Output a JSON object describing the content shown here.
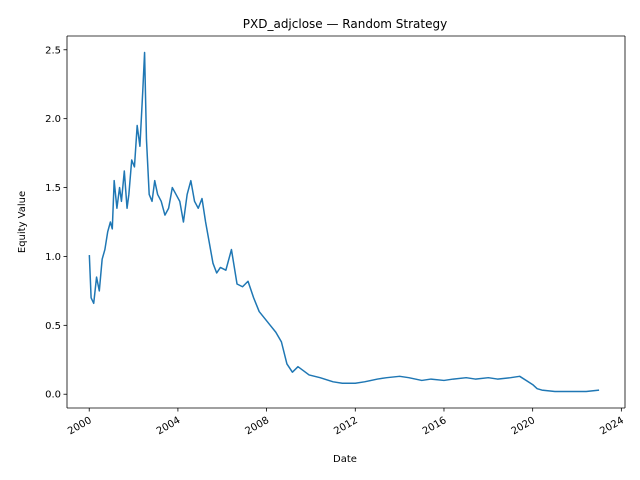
{
  "chart_data": {
    "type": "line",
    "title": "PXD_adjclose — Random Strategy",
    "xlabel": "Date",
    "ylabel": "Equity Value",
    "xlim": [
      "1998-12-31",
      "2024-03-01"
    ],
    "ylim": [
      -0.1,
      2.6
    ],
    "x_ticks": [
      "2000",
      "2004",
      "2008",
      "2012",
      "2016",
      "2020",
      "2024"
    ],
    "y_ticks": [
      "0.0",
      "0.5",
      "1.0",
      "1.5",
      "2.0",
      "2.5"
    ],
    "grid": false,
    "line_color": "#1f77b4",
    "series": [
      {
        "name": "",
        "x": [
          "2000-01-03",
          "2000-02-01",
          "2000-03-15",
          "2000-05-01",
          "2000-06-15",
          "2000-08-01",
          "2000-09-15",
          "2000-11-01",
          "2000-12-15",
          "2001-01-15",
          "2001-02-15",
          "2001-04-01",
          "2001-05-15",
          "2001-06-15",
          "2001-08-01",
          "2001-09-15",
          "2001-10-15",
          "2001-12-01",
          "2002-01-15",
          "2002-03-01",
          "2002-04-15",
          "2002-06-01",
          "2002-07-01",
          "2002-08-01",
          "2002-09-15",
          "2002-11-01",
          "2002-12-15",
          "2003-02-01",
          "2003-04-01",
          "2003-06-01",
          "2003-08-01",
          "2003-10-01",
          "2003-12-01",
          "2004-02-01",
          "2004-04-01",
          "2004-06-01",
          "2004-08-01",
          "2004-10-01",
          "2004-12-01",
          "2005-02-01",
          "2005-04-01",
          "2005-06-01",
          "2005-08-01",
          "2005-10-01",
          "2005-12-01",
          "2006-03-01",
          "2006-06-01",
          "2006-09-01",
          "2006-12-01",
          "2007-03-01",
          "2007-06-01",
          "2007-09-01",
          "2007-12-01",
          "2008-03-01",
          "2008-06-01",
          "2008-09-01",
          "2008-12-01",
          "2009-03-01",
          "2009-06-01",
          "2009-09-01",
          "2009-12-01",
          "2010-06-01",
          "2011-01-01",
          "2011-06-01",
          "2012-01-01",
          "2012-06-01",
          "2013-01-01",
          "2013-06-01",
          "2014-01-01",
          "2014-06-01",
          "2015-01-01",
          "2015-06-01",
          "2016-01-01",
          "2016-06-01",
          "2017-01-01",
          "2017-06-01",
          "2018-01-01",
          "2018-06-01",
          "2019-01-01",
          "2019-06-01",
          "2020-01-01",
          "2020-03-15",
          "2020-06-01",
          "2021-01-01",
          "2021-06-01",
          "2022-01-01",
          "2022-06-01",
          "2022-12-30"
        ],
        "values": [
          1.01,
          0.7,
          0.66,
          0.85,
          0.75,
          0.98,
          1.05,
          1.18,
          1.25,
          1.2,
          1.55,
          1.35,
          1.5,
          1.4,
          1.62,
          1.35,
          1.45,
          1.7,
          1.65,
          1.95,
          1.8,
          2.2,
          2.48,
          1.85,
          1.45,
          1.4,
          1.55,
          1.45,
          1.4,
          1.3,
          1.35,
          1.5,
          1.45,
          1.4,
          1.25,
          1.45,
          1.55,
          1.4,
          1.35,
          1.42,
          1.25,
          1.1,
          0.95,
          0.88,
          0.92,
          0.9,
          1.05,
          0.8,
          0.78,
          0.82,
          0.7,
          0.6,
          0.55,
          0.5,
          0.45,
          0.38,
          0.22,
          0.16,
          0.2,
          0.17,
          0.14,
          0.12,
          0.09,
          0.08,
          0.08,
          0.09,
          0.11,
          0.12,
          0.13,
          0.12,
          0.1,
          0.11,
          0.1,
          0.11,
          0.12,
          0.11,
          0.12,
          0.11,
          0.12,
          0.13,
          0.07,
          0.04,
          0.03,
          0.02,
          0.02,
          0.02,
          0.02,
          0.03
        ]
      }
    ]
  }
}
